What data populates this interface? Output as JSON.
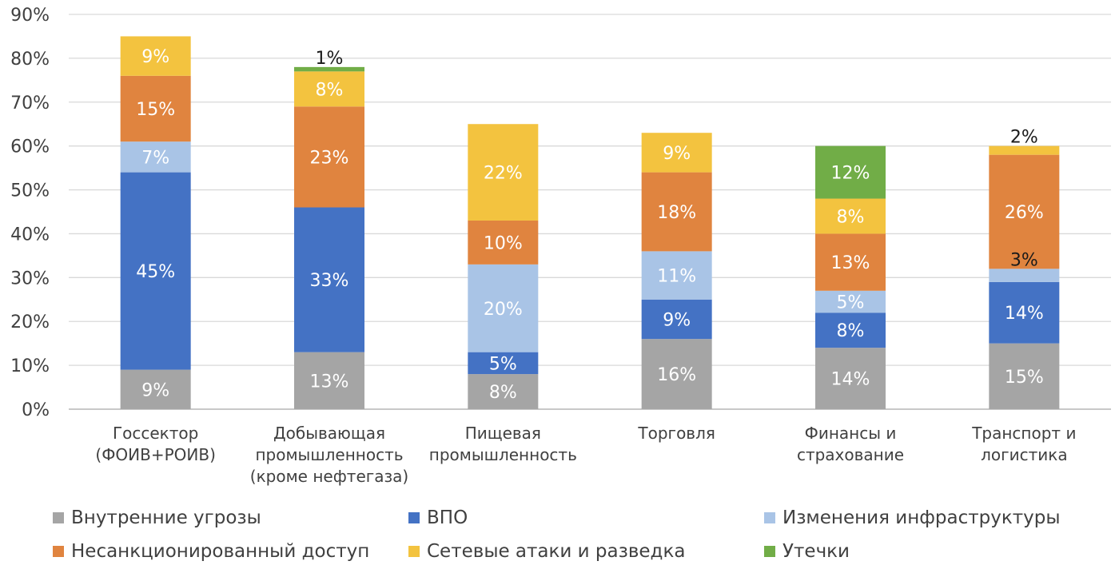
{
  "colors": {
    "grid": "#d9d9d9",
    "axis": "#a6a6a6",
    "tick_text": "#404040",
    "label_light": "#ffffff",
    "label_dark": "#1a1a1a"
  },
  "chart_data": {
    "type": "bar",
    "stacked": true,
    "ylim": [
      0,
      90
    ],
    "yticks": [
      "0%",
      "10%",
      "20%",
      "30%",
      "40%",
      "50%",
      "60%",
      "70%",
      "80%",
      "90%"
    ],
    "grid": true,
    "legend_position": "bottom",
    "categories": [
      [
        "Госсектор",
        "(ФОИВ+РОИВ)"
      ],
      [
        "Добывающая",
        "промышленность",
        "(кроме нефтегаза)"
      ],
      [
        "Пищевая",
        "промышленность"
      ],
      [
        "Торговля"
      ],
      [
        "Финансы и",
        "страхование"
      ],
      [
        "Транспорт и",
        "логистика"
      ]
    ],
    "series": [
      {
        "name": "Внутренние угрозы",
        "color": "#a5a5a5",
        "values": [
          9,
          13,
          8,
          16,
          14,
          15
        ]
      },
      {
        "name": "ВПО",
        "color": "#4472c4",
        "values": [
          45,
          33,
          5,
          9,
          8,
          14
        ]
      },
      {
        "name": "Изменения инфраструктуры",
        "color": "#a9c4e6",
        "values": [
          7,
          0,
          20,
          11,
          5,
          3
        ]
      },
      {
        "name": "Несанкционированный доступ",
        "color": "#e0843f",
        "values": [
          15,
          23,
          10,
          18,
          13,
          26
        ]
      },
      {
        "name": "Сетевые атаки и разведка",
        "color": "#f3c33f",
        "values": [
          9,
          8,
          22,
          9,
          8,
          2
        ]
      },
      {
        "name": "Утечки",
        "color": "#71ad47",
        "values": [
          0,
          1,
          0,
          0,
          12,
          0
        ]
      }
    ]
  }
}
